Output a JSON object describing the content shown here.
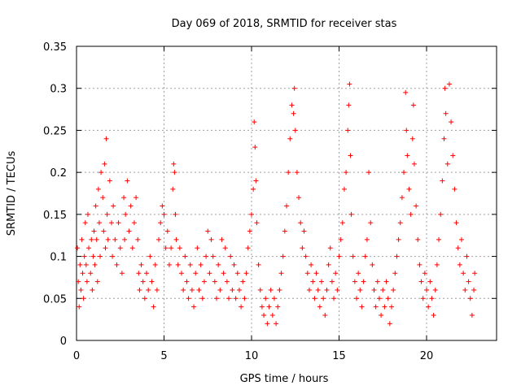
{
  "chart_data": {
    "type": "scatter",
    "title": "Day 069 of 2018, SRMTID for receiver stas",
    "xlabel": "GPS time / hours",
    "ylabel": "SRMTID / TECUs",
    "xlim": [
      0,
      24
    ],
    "ylim": [
      0,
      0.35
    ],
    "xticks": [
      0,
      5,
      10,
      15,
      20
    ],
    "xtick_labels": [
      "0",
      "5",
      "10",
      "15",
      "20"
    ],
    "yticks": [
      0,
      0.05,
      0.1,
      0.15,
      0.2,
      0.25,
      0.3,
      0.35
    ],
    "ytick_labels": [
      "0",
      "0.05",
      "0.1",
      "0.15",
      "0.2",
      "0.25",
      "0.3",
      "0.35"
    ],
    "grid": true,
    "marker": "+",
    "series": [
      {
        "name": "stas",
        "color": "#ff0000",
        "points": [
          [
            0.05,
            0.11
          ],
          [
            0.1,
            0.07
          ],
          [
            0.15,
            0.04
          ],
          [
            0.2,
            0.09
          ],
          [
            0.25,
            0.06
          ],
          [
            0.3,
            0.12
          ],
          [
            0.35,
            0.08
          ],
          [
            0.4,
            0.05
          ],
          [
            0.45,
            0.1
          ],
          [
            0.5,
            0.14
          ],
          [
            0.55,
            0.09
          ],
          [
            0.6,
            0.07
          ],
          [
            0.65,
            0.15
          ],
          [
            0.7,
            0.11
          ],
          [
            0.8,
            0.08
          ],
          [
            0.85,
            0.12
          ],
          [
            0.9,
            0.06
          ],
          [
            0.95,
            0.1
          ],
          [
            1.0,
            0.13
          ],
          [
            1.05,
            0.09
          ],
          [
            1.1,
            0.16
          ],
          [
            1.15,
            0.12
          ],
          [
            1.2,
            0.07
          ],
          [
            1.25,
            0.18
          ],
          [
            1.3,
            0.14
          ],
          [
            1.35,
            0.1
          ],
          [
            1.4,
            0.2
          ],
          [
            1.5,
            0.17
          ],
          [
            1.55,
            0.13
          ],
          [
            1.6,
            0.21
          ],
          [
            1.65,
            0.11
          ],
          [
            1.7,
            0.24
          ],
          [
            1.75,
            0.15
          ],
          [
            1.8,
            0.12
          ],
          [
            1.9,
            0.19
          ],
          [
            2.0,
            0.14
          ],
          [
            2.05,
            0.1
          ],
          [
            2.1,
            0.16
          ],
          [
            2.2,
            0.12
          ],
          [
            2.3,
            0.09
          ],
          [
            2.4,
            0.14
          ],
          [
            2.5,
            0.11
          ],
          [
            2.6,
            0.08
          ],
          [
            2.7,
            0.17
          ],
          [
            2.75,
            0.12
          ],
          [
            2.8,
            0.15
          ],
          [
            2.9,
            0.19
          ],
          [
            3.0,
            0.13
          ],
          [
            3.1,
            0.16
          ],
          [
            3.2,
            0.11
          ],
          [
            3.3,
            0.14
          ],
          [
            3.4,
            0.17
          ],
          [
            3.5,
            0.12
          ],
          [
            3.55,
            0.08
          ],
          [
            3.6,
            0.06
          ],
          [
            3.7,
            0.09
          ],
          [
            3.8,
            0.07
          ],
          [
            3.9,
            0.05
          ],
          [
            4.0,
            0.08
          ],
          [
            4.1,
            0.06
          ],
          [
            4.2,
            0.1
          ],
          [
            4.3,
            0.07
          ],
          [
            4.4,
            0.04
          ],
          [
            4.5,
            0.09
          ],
          [
            4.6,
            0.06
          ],
          [
            4.7,
            0.12
          ],
          [
            4.8,
            0.14
          ],
          [
            4.9,
            0.16
          ],
          [
            5.0,
            0.15
          ],
          [
            5.1,
            0.11
          ],
          [
            5.2,
            0.13
          ],
          [
            5.3,
            0.09
          ],
          [
            5.4,
            0.11
          ],
          [
            5.5,
            0.18
          ],
          [
            5.55,
            0.21
          ],
          [
            5.6,
            0.2
          ],
          [
            5.65,
            0.15
          ],
          [
            5.7,
            0.12
          ],
          [
            5.8,
            0.09
          ],
          [
            5.9,
            0.11
          ],
          [
            6.0,
            0.08
          ],
          [
            6.1,
            0.06
          ],
          [
            6.2,
            0.1
          ],
          [
            6.3,
            0.07
          ],
          [
            6.4,
            0.05
          ],
          [
            6.5,
            0.09
          ],
          [
            6.6,
            0.06
          ],
          [
            6.7,
            0.04
          ],
          [
            6.8,
            0.08
          ],
          [
            6.9,
            0.11
          ],
          [
            7.0,
            0.06
          ],
          [
            7.1,
            0.09
          ],
          [
            7.2,
            0.05
          ],
          [
            7.3,
            0.07
          ],
          [
            7.4,
            0.1
          ],
          [
            7.5,
            0.13
          ],
          [
            7.6,
            0.08
          ],
          [
            7.7,
            0.12
          ],
          [
            7.8,
            0.1
          ],
          [
            7.9,
            0.07
          ],
          [
            8.0,
            0.05
          ],
          [
            8.1,
            0.09
          ],
          [
            8.2,
            0.06
          ],
          [
            8.3,
            0.12
          ],
          [
            8.4,
            0.08
          ],
          [
            8.5,
            0.11
          ],
          [
            8.6,
            0.07
          ],
          [
            8.7,
            0.05
          ],
          [
            8.8,
            0.1
          ],
          [
            8.9,
            0.06
          ],
          [
            9.0,
            0.09
          ],
          [
            9.1,
            0.05
          ],
          [
            9.2,
            0.08
          ],
          [
            9.3,
            0.06
          ],
          [
            9.4,
            0.04
          ],
          [
            9.5,
            0.07
          ],
          [
            9.6,
            0.05
          ],
          [
            9.7,
            0.08
          ],
          [
            9.8,
            0.11
          ],
          [
            9.9,
            0.13
          ],
          [
            10.0,
            0.15
          ],
          [
            10.1,
            0.18
          ],
          [
            10.15,
            0.26
          ],
          [
            10.2,
            0.23
          ],
          [
            10.25,
            0.19
          ],
          [
            10.3,
            0.14
          ],
          [
            10.4,
            0.09
          ],
          [
            10.5,
            0.06
          ],
          [
            10.6,
            0.04
          ],
          [
            10.7,
            0.03
          ],
          [
            10.8,
            0.05
          ],
          [
            10.9,
            0.02
          ],
          [
            11.0,
            0.04
          ],
          [
            11.1,
            0.06
          ],
          [
            11.2,
            0.03
          ],
          [
            11.3,
            0.05
          ],
          [
            11.4,
            0.02
          ],
          [
            11.5,
            0.04
          ],
          [
            11.6,
            0.06
          ],
          [
            11.7,
            0.08
          ],
          [
            11.8,
            0.1
          ],
          [
            11.9,
            0.13
          ],
          [
            12.0,
            0.16
          ],
          [
            12.1,
            0.2
          ],
          [
            12.2,
            0.24
          ],
          [
            12.3,
            0.28
          ],
          [
            12.4,
            0.27
          ],
          [
            12.45,
            0.3
          ],
          [
            12.5,
            0.25
          ],
          [
            12.6,
            0.2
          ],
          [
            12.7,
            0.17
          ],
          [
            12.8,
            0.14
          ],
          [
            12.9,
            0.11
          ],
          [
            13.0,
            0.13
          ],
          [
            13.1,
            0.1
          ],
          [
            13.2,
            0.08
          ],
          [
            13.3,
            0.06
          ],
          [
            13.4,
            0.09
          ],
          [
            13.5,
            0.07
          ],
          [
            13.6,
            0.05
          ],
          [
            13.7,
            0.08
          ],
          [
            13.8,
            0.06
          ],
          [
            13.9,
            0.04
          ],
          [
            14.0,
            0.07
          ],
          [
            14.1,
            0.05
          ],
          [
            14.2,
            0.03
          ],
          [
            14.3,
            0.06
          ],
          [
            14.4,
            0.09
          ],
          [
            14.5,
            0.11
          ],
          [
            14.6,
            0.07
          ],
          [
            14.7,
            0.05
          ],
          [
            14.8,
            0.08
          ],
          [
            14.9,
            0.06
          ],
          [
            15.0,
            0.1
          ],
          [
            15.1,
            0.12
          ],
          [
            15.2,
            0.14
          ],
          [
            15.3,
            0.18
          ],
          [
            15.4,
            0.2
          ],
          [
            15.5,
            0.25
          ],
          [
            15.55,
            0.28
          ],
          [
            15.6,
            0.305
          ],
          [
            15.65,
            0.22
          ],
          [
            15.7,
            0.15
          ],
          [
            15.8,
            0.1
          ],
          [
            15.9,
            0.07
          ],
          [
            16.0,
            0.05
          ],
          [
            16.1,
            0.08
          ],
          [
            16.2,
            0.06
          ],
          [
            16.3,
            0.04
          ],
          [
            16.4,
            0.07
          ],
          [
            16.5,
            0.1
          ],
          [
            16.6,
            0.12
          ],
          [
            16.7,
            0.2
          ],
          [
            16.8,
            0.14
          ],
          [
            16.9,
            0.09
          ],
          [
            17.0,
            0.06
          ],
          [
            17.1,
            0.04
          ],
          [
            17.2,
            0.07
          ],
          [
            17.3,
            0.05
          ],
          [
            17.4,
            0.03
          ],
          [
            17.5,
            0.06
          ],
          [
            17.6,
            0.04
          ],
          [
            17.7,
            0.07
          ],
          [
            17.8,
            0.05
          ],
          [
            17.9,
            0.02
          ],
          [
            18.0,
            0.04
          ],
          [
            18.1,
            0.06
          ],
          [
            18.2,
            0.08
          ],
          [
            18.3,
            0.1
          ],
          [
            18.4,
            0.12
          ],
          [
            18.5,
            0.14
          ],
          [
            18.6,
            0.17
          ],
          [
            18.7,
            0.2
          ],
          [
            18.8,
            0.295
          ],
          [
            18.85,
            0.25
          ],
          [
            18.9,
            0.22
          ],
          [
            19.0,
            0.18
          ],
          [
            19.1,
            0.15
          ],
          [
            19.2,
            0.24
          ],
          [
            19.25,
            0.28
          ],
          [
            19.3,
            0.21
          ],
          [
            19.4,
            0.16
          ],
          [
            19.5,
            0.12
          ],
          [
            19.6,
            0.09
          ],
          [
            19.7,
            0.07
          ],
          [
            19.8,
            0.05
          ],
          [
            19.9,
            0.08
          ],
          [
            20.0,
            0.06
          ],
          [
            20.1,
            0.04
          ],
          [
            20.2,
            0.07
          ],
          [
            20.3,
            0.05
          ],
          [
            20.4,
            0.03
          ],
          [
            20.5,
            0.06
          ],
          [
            20.6,
            0.09
          ],
          [
            20.7,
            0.12
          ],
          [
            20.8,
            0.15
          ],
          [
            20.9,
            0.19
          ],
          [
            21.0,
            0.24
          ],
          [
            21.05,
            0.3
          ],
          [
            21.1,
            0.27
          ],
          [
            21.2,
            0.21
          ],
          [
            21.3,
            0.305
          ],
          [
            21.4,
            0.26
          ],
          [
            21.5,
            0.22
          ],
          [
            21.6,
            0.18
          ],
          [
            21.7,
            0.14
          ],
          [
            21.8,
            0.11
          ],
          [
            21.9,
            0.09
          ],
          [
            22.0,
            0.12
          ],
          [
            22.1,
            0.08
          ],
          [
            22.2,
            0.06
          ],
          [
            22.3,
            0.1
          ],
          [
            22.4,
            0.07
          ],
          [
            22.5,
            0.05
          ],
          [
            22.6,
            0.03
          ],
          [
            22.7,
            0.06
          ],
          [
            22.75,
            0.08
          ]
        ]
      }
    ]
  }
}
